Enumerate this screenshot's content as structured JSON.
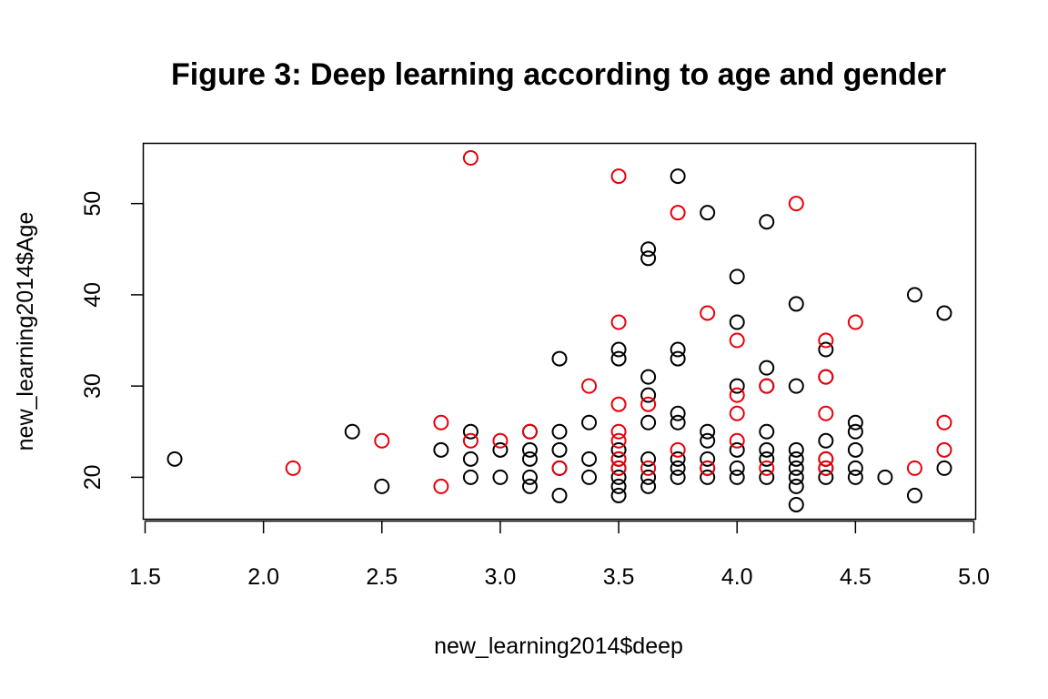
{
  "colors": {
    "series_1": "#000000",
    "series_2": "#e8000b"
  },
  "chart_data": {
    "type": "scatter",
    "title": "Figure 3: Deep learning according to age and gender",
    "xlabel": "new_learning2014$deep",
    "ylabel": "new_learning2014$Age",
    "xlim": [
      1.5,
      5.0
    ],
    "ylim": [
      15.4,
      56.6
    ],
    "x_ticks": [
      "1.5",
      "2.0",
      "2.5",
      "3.0",
      "3.5",
      "4.0",
      "4.5",
      "5.0"
    ],
    "y_ticks": [
      "20",
      "30",
      "40",
      "50"
    ],
    "grid": false,
    "marker": "open-circle",
    "series": [
      {
        "color": "#000000",
        "points": [
          [
            1.625,
            22
          ],
          [
            2.375,
            25
          ],
          [
            2.5,
            19
          ],
          [
            2.75,
            23
          ],
          [
            2.875,
            25
          ],
          [
            2.875,
            22
          ],
          [
            2.875,
            20
          ],
          [
            3.0,
            23
          ],
          [
            3.0,
            20
          ],
          [
            3.125,
            25
          ],
          [
            3.125,
            23
          ],
          [
            3.125,
            22
          ],
          [
            3.125,
            20
          ],
          [
            3.125,
            19
          ],
          [
            3.25,
            33
          ],
          [
            3.25,
            25
          ],
          [
            3.25,
            23
          ],
          [
            3.25,
            21
          ],
          [
            3.25,
            18
          ],
          [
            3.375,
            26
          ],
          [
            3.375,
            22
          ],
          [
            3.375,
            20
          ],
          [
            3.5,
            34
          ],
          [
            3.5,
            33
          ],
          [
            3.5,
            23
          ],
          [
            3.5,
            22
          ],
          [
            3.5,
            21
          ],
          [
            3.5,
            20
          ],
          [
            3.5,
            19
          ],
          [
            3.5,
            18
          ],
          [
            3.625,
            45
          ],
          [
            3.625,
            44
          ],
          [
            3.625,
            31
          ],
          [
            3.625,
            29
          ],
          [
            3.625,
            26
          ],
          [
            3.625,
            22
          ],
          [
            3.625,
            20
          ],
          [
            3.625,
            19
          ],
          [
            3.75,
            53
          ],
          [
            3.75,
            34
          ],
          [
            3.75,
            33
          ],
          [
            3.75,
            27
          ],
          [
            3.75,
            26
          ],
          [
            3.75,
            22
          ],
          [
            3.75,
            21
          ],
          [
            3.75,
            20
          ],
          [
            3.875,
            49
          ],
          [
            3.875,
            25
          ],
          [
            3.875,
            24
          ],
          [
            3.875,
            22
          ],
          [
            3.875,
            21
          ],
          [
            3.875,
            20
          ],
          [
            4.0,
            42
          ],
          [
            4.0,
            37
          ],
          [
            4.0,
            30
          ],
          [
            4.0,
            23
          ],
          [
            4.0,
            21
          ],
          [
            4.0,
            20
          ],
          [
            4.125,
            48
          ],
          [
            4.125,
            32
          ],
          [
            4.125,
            30
          ],
          [
            4.125,
            25
          ],
          [
            4.125,
            23
          ],
          [
            4.125,
            22
          ],
          [
            4.125,
            20
          ],
          [
            4.25,
            39
          ],
          [
            4.25,
            30
          ],
          [
            4.25,
            23
          ],
          [
            4.25,
            22
          ],
          [
            4.25,
            21
          ],
          [
            4.25,
            20
          ],
          [
            4.25,
            19
          ],
          [
            4.25,
            17
          ],
          [
            4.375,
            34
          ],
          [
            4.375,
            31
          ],
          [
            4.375,
            24
          ],
          [
            4.375,
            22
          ],
          [
            4.375,
            21
          ],
          [
            4.375,
            20
          ],
          [
            4.5,
            26
          ],
          [
            4.5,
            25
          ],
          [
            4.5,
            23
          ],
          [
            4.5,
            21
          ],
          [
            4.5,
            20
          ],
          [
            4.625,
            20
          ],
          [
            4.75,
            40
          ],
          [
            4.75,
            18
          ],
          [
            4.875,
            38
          ],
          [
            4.875,
            21
          ]
        ]
      },
      {
        "color": "#e8000b",
        "points": [
          [
            2.125,
            21
          ],
          [
            2.5,
            24
          ],
          [
            2.75,
            26
          ],
          [
            2.75,
            19
          ],
          [
            2.875,
            55
          ],
          [
            2.875,
            24
          ],
          [
            3.0,
            24
          ],
          [
            3.125,
            25
          ],
          [
            3.25,
            21
          ],
          [
            3.375,
            30
          ],
          [
            3.5,
            53
          ],
          [
            3.5,
            37
          ],
          [
            3.5,
            28
          ],
          [
            3.5,
            25
          ],
          [
            3.5,
            24
          ],
          [
            3.5,
            22
          ],
          [
            3.5,
            21
          ],
          [
            3.625,
            28
          ],
          [
            3.625,
            21
          ],
          [
            3.75,
            49
          ],
          [
            3.75,
            23
          ],
          [
            3.875,
            38
          ],
          [
            3.875,
            21
          ],
          [
            4.0,
            35
          ],
          [
            4.0,
            29
          ],
          [
            4.0,
            27
          ],
          [
            4.0,
            24
          ],
          [
            4.125,
            30
          ],
          [
            4.125,
            21
          ],
          [
            4.25,
            50
          ],
          [
            4.375,
            35
          ],
          [
            4.375,
            31
          ],
          [
            4.375,
            27
          ],
          [
            4.375,
            22
          ],
          [
            4.375,
            21
          ],
          [
            4.5,
            37
          ],
          [
            4.75,
            21
          ],
          [
            4.875,
            26
          ],
          [
            4.875,
            23
          ]
        ]
      }
    ]
  }
}
